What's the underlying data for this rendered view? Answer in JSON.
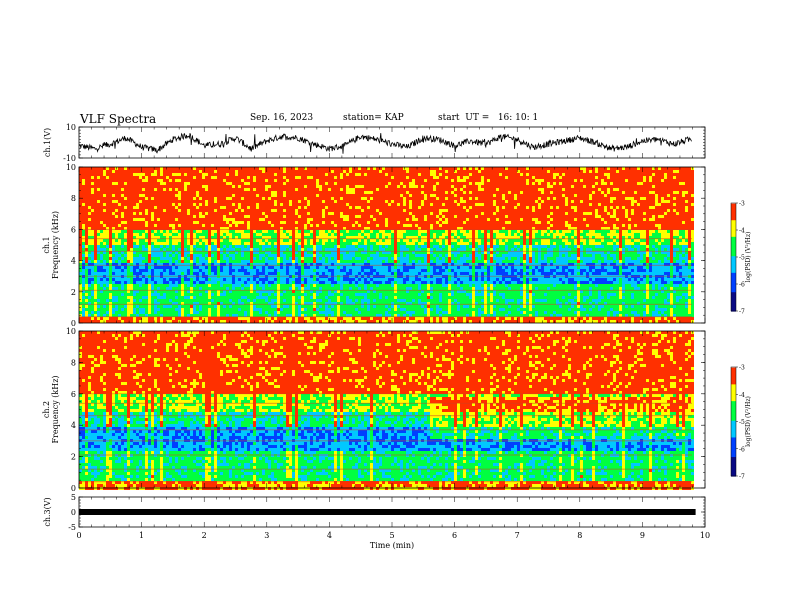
{
  "header": {
    "title": "VLF Spectra",
    "date": "Sep. 16, 2023",
    "station": "station= KAP",
    "start": "start  UT =   16: 10: 1"
  },
  "colors": {
    "spec": [
      "#0a0a84",
      "#0040ff",
      "#00c8ff",
      "#00ff40",
      "#ffff00",
      "#ff3000",
      "#ffffff"
    ],
    "trace": "#000000"
  },
  "chart_data": [
    {
      "id": "ch1-waveform",
      "type": "line",
      "ylabel": "ch.1(V)",
      "ylim": [
        -10,
        10
      ],
      "y_ticks": [
        -10,
        10
      ],
      "x": [
        0,
        0.25,
        0.5,
        0.75,
        1.0,
        1.25,
        1.5,
        1.75,
        2.0,
        2.25,
        2.5,
        2.75,
        3.0,
        3.25,
        3.5,
        3.75,
        4.0,
        4.25,
        4.5,
        4.75,
        5.0,
        5.25,
        5.5,
        5.75,
        6.0,
        6.25,
        6.5,
        6.75,
        7.0,
        7.25,
        7.5,
        7.75,
        8.0,
        8.25,
        8.5,
        8.75,
        9.0,
        9.25,
        9.5,
        9.75,
        9.85
      ],
      "y": [
        -2,
        -4,
        -1,
        3,
        -3,
        -5,
        2,
        5,
        -2,
        -1,
        3,
        -4,
        1,
        4,
        3,
        -1,
        -4,
        -2,
        4,
        2,
        -1,
        -3,
        3,
        2,
        -2,
        1,
        -1,
        4,
        2,
        -3,
        -1,
        1,
        3,
        0,
        -4,
        -3,
        1,
        2,
        -1,
        2,
        1
      ]
    },
    {
      "id": "ch1-spectrogram",
      "type": "heatmap",
      "ylabel": "ch.1\nFrequency (kHz)",
      "ylim": [
        0,
        10
      ],
      "y_ticks": [
        0,
        2,
        4,
        6,
        8,
        10
      ],
      "colorbar": {
        "label": "log(PSD) (V²/Hz)",
        "range": [
          -7,
          -3
        ],
        "ticks": [
          -7,
          -6,
          -5,
          -4,
          -3
        ]
      }
    },
    {
      "id": "ch2-spectrogram",
      "type": "heatmap",
      "ylabel": "ch.2\nFrequency (kHz)",
      "ylim": [
        0,
        10
      ],
      "y_ticks": [
        0,
        2,
        4,
        6,
        8,
        10
      ],
      "colorbar": {
        "label": "log(PSD) (V²/Hz)",
        "range": [
          -7,
          -3
        ],
        "ticks": [
          -7,
          -6,
          -5,
          -4,
          -3
        ]
      }
    },
    {
      "id": "ch3-waveform",
      "type": "line",
      "ylabel": "ch.3(V)",
      "ylim": [
        -5,
        5
      ],
      "y_ticks": [
        -5,
        0,
        5
      ],
      "x": [
        0,
        9.85
      ],
      "y": [
        0,
        0
      ]
    }
  ],
  "x_axis": {
    "label": "Time (min)",
    "range": [
      0,
      10
    ],
    "ticks": [
      0,
      1,
      2,
      3,
      4,
      5,
      6,
      7,
      8,
      9,
      10
    ]
  }
}
